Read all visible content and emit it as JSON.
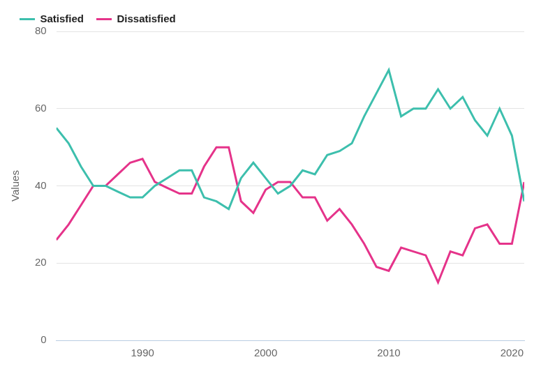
{
  "chart_data": {
    "type": "line",
    "x": [
      1983,
      1984,
      1985,
      1986,
      1987,
      1988,
      1989,
      1990,
      1991,
      1992,
      1993,
      1994,
      1995,
      1996,
      1997,
      1998,
      1999,
      2000,
      2001,
      2002,
      2003,
      2004,
      2005,
      2006,
      2007,
      2008,
      2009,
      2010,
      2011,
      2012,
      2013,
      2014,
      2015,
      2016,
      2017,
      2018,
      2019,
      2020,
      2021
    ],
    "series": [
      {
        "name": "Satisfied",
        "color": "#3dbfad",
        "values": [
          55,
          51,
          45,
          40,
          40,
          38.5,
          37,
          37,
          40,
          42,
          44,
          44,
          37,
          36,
          34,
          42,
          46,
          42,
          38,
          40,
          44,
          43,
          48,
          49,
          51,
          58,
          64,
          70,
          58,
          60,
          60,
          65,
          60,
          63,
          57,
          53,
          60,
          53,
          36
        ]
      },
      {
        "name": "Dissatisfied",
        "color": "#e5338a",
        "values": [
          26,
          30,
          35,
          40,
          40,
          43,
          46,
          47,
          41,
          39.5,
          38,
          38,
          45,
          50,
          50,
          36,
          33,
          39,
          41,
          41,
          37,
          37,
          31,
          34,
          30,
          25,
          19,
          18,
          24,
          23,
          22,
          15,
          23,
          22,
          29,
          30,
          25,
          25,
          41
        ]
      }
    ],
    "y_label": "Values",
    "xlim": [
      1983,
      2021
    ],
    "xticks": [
      1990,
      2000,
      2010,
      2020
    ],
    "ylim": [
      0,
      80
    ],
    "yticks": [
      0,
      20,
      40,
      60,
      80
    ],
    "grid": true,
    "legend": "top-left"
  }
}
